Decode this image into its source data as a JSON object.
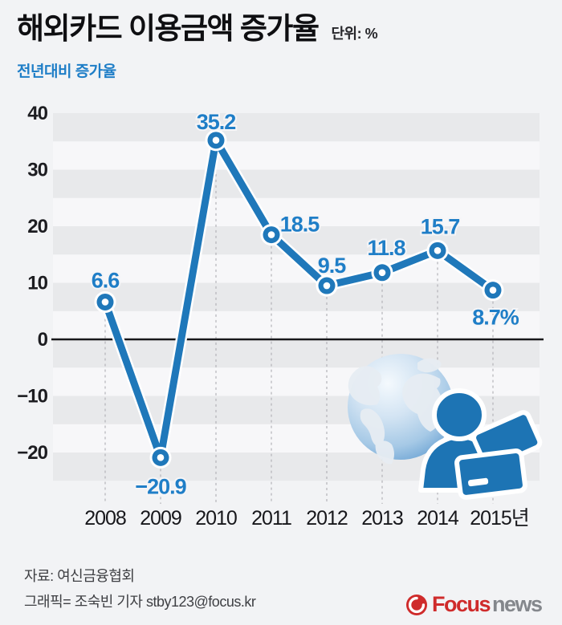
{
  "header": {
    "title": "해외카드 이용금액 증가율",
    "unit": "단위: %",
    "subtitle": "전년대비 증가율"
  },
  "chart_data": {
    "type": "line",
    "title": "해외카드 이용금액 증가율",
    "subtitle": "전년대비 증가율",
    "unit": "%",
    "categories": [
      "2008",
      "2009",
      "2010",
      "2011",
      "2012",
      "2013",
      "2014",
      "2015년"
    ],
    "values": [
      6.6,
      -20.9,
      35.2,
      18.5,
      9.5,
      11.8,
      15.7,
      8.7
    ],
    "point_labels": [
      "6.6",
      "−20.9",
      "35.2",
      "18.5",
      "9.5",
      "11.8",
      "15.7",
      "8.7%"
    ],
    "yticks": [
      40,
      30,
      20,
      10,
      0,
      -10,
      -20
    ],
    "ytick_labels": [
      "40",
      "30",
      "20",
      "10",
      "0",
      "−10",
      "−20"
    ],
    "ylim": [
      -25,
      40
    ],
    "grid": "horizontal-bands-5unit",
    "legend": "none",
    "series": [
      {
        "name": "전년대비 증가율",
        "values": [
          6.6,
          -20.9,
          35.2,
          18.5,
          9.5,
          11.8,
          15.7,
          8.7
        ]
      }
    ]
  },
  "colors": {
    "line_blue": "#1f78ba",
    "label_blue": "#1f7ec7",
    "band_gray": "#e8e9eb",
    "plot_bg": "#f7f7f9",
    "axis_black": "#18181b",
    "dash_gray": "#b3b3b8",
    "logo_red": "#cf2b2b",
    "logo_gray": "#84878c"
  },
  "footer": {
    "source": "자료: 여신금융협회",
    "credit": "그래픽= 조숙빈 기자 stby123@focus.kr"
  },
  "logo": {
    "brand_primary": "Focus",
    "brand_secondary": "news"
  }
}
